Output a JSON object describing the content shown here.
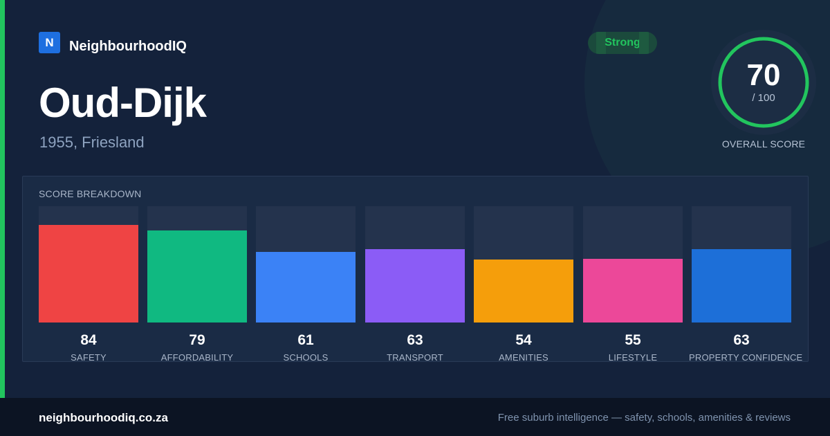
{
  "brand": {
    "logo_letter": "N",
    "name": "NeighbourhoodIQ",
    "accent_color": "#22c55e",
    "logo_color": "#1e6fe0"
  },
  "place": {
    "name": "Oud-Dijk",
    "subtitle": "1955, Friesland"
  },
  "rating": {
    "label": "Strong",
    "color": "#22c55e"
  },
  "overall": {
    "score": "70",
    "max_label": "/ 100",
    "label": "OVERALL SCORE",
    "score_value": 70,
    "max": 100
  },
  "breakdown": {
    "title": "SCORE BREAKDOWN",
    "items": [
      {
        "label": "SAFETY",
        "value": "84",
        "color": "#ef4444"
      },
      {
        "label": "AFFORDABILITY",
        "value": "79",
        "color": "#10b981"
      },
      {
        "label": "SCHOOLS",
        "value": "61",
        "color": "#3b82f6"
      },
      {
        "label": "TRANSPORT",
        "value": "63",
        "color": "#8b5cf6"
      },
      {
        "label": "AMENITIES",
        "value": "54",
        "color": "#f59e0b"
      },
      {
        "label": "LIFESTYLE",
        "value": "55",
        "color": "#ec4899"
      },
      {
        "label": "PROPERTY CONFIDENCE",
        "value": "63",
        "color": "#1d6fd8"
      }
    ]
  },
  "footer": {
    "domain": "neighbourhoodiq.co.za",
    "tagline": "Free suburb intelligence — safety, schools, amenities & reviews"
  }
}
